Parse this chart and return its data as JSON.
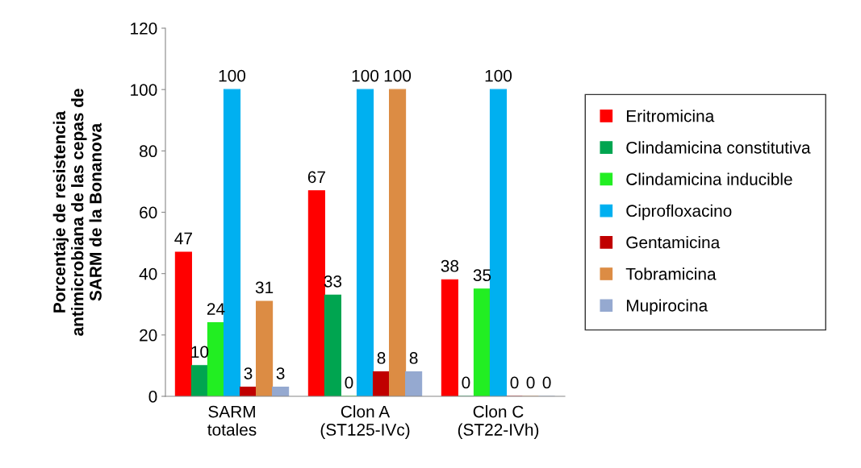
{
  "chart_data": {
    "type": "bar",
    "ylabel": "Porcentaje de resistencia\nantimicrobiana de las cepas de\nSARM de la Bonanova",
    "categories": [
      "SARM\ntotales",
      "Clon A\n(ST125-IVc)",
      "Clon C\n(ST22-IVh)"
    ],
    "series": [
      {
        "name": "Eritromicina",
        "color": "#ff0000",
        "values": [
          47,
          67,
          38
        ]
      },
      {
        "name": "Clindamicina constitutiva",
        "color": "#00a550",
        "values": [
          10,
          33,
          0
        ]
      },
      {
        "name": "Clindamicina inducible",
        "color": "#22ee22",
        "values": [
          24,
          0,
          35
        ]
      },
      {
        "name": "Ciprofloxacino",
        "color": "#00b0f0",
        "values": [
          100,
          100,
          100
        ]
      },
      {
        "name": "Gentamicina",
        "color": "#c00000",
        "values": [
          3,
          8,
          0
        ]
      },
      {
        "name": "Tobramicina",
        "color": "#dc8c44",
        "values": [
          31,
          100,
          0
        ]
      },
      {
        "name": "Mupirocina",
        "color": "#95a9d0",
        "values": [
          3,
          8,
          0
        ]
      }
    ],
    "ylim": [
      0,
      120
    ],
    "yticks": [
      0,
      20,
      40,
      60,
      80,
      100,
      120
    ],
    "data_labels": true,
    "legend": "right",
    "grid": false
  }
}
